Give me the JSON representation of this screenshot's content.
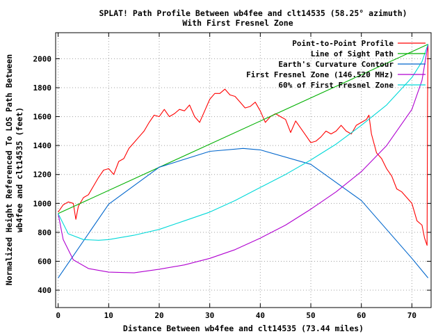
{
  "chart_data": {
    "type": "line",
    "title": "SPLAT! Path Profile Between wb4fee and clt14535 (58.25° azimuth)",
    "subtitle": "With First Fresnel Zone",
    "xlabel": "Distance Between wb4fee and clt14535 (73.44 miles)",
    "ylabel_lines": [
      "Normalized Height Referenced To LOS Path Between",
      "wb4fee and clt14535 (feet)"
    ],
    "xlim": [
      -0.5,
      73.8
    ],
    "ylim": [
      280,
      2180
    ],
    "x_ticks": [
      0,
      10,
      20,
      30,
      40,
      50,
      60,
      70
    ],
    "y_ticks": [
      400,
      600,
      800,
      1000,
      1200,
      1400,
      1600,
      1800,
      2000
    ],
    "grid": true,
    "legend_position": "top-right",
    "series": [
      {
        "name": "Point-to-Point Profile",
        "color": "#ff0000",
        "x": [
          0,
          1,
          2,
          3,
          3.5,
          4,
          5,
          6,
          7,
          8,
          9,
          10,
          11,
          12,
          13,
          14,
          15,
          16,
          17,
          18,
          19,
          20,
          21,
          22,
          23,
          24,
          25,
          26,
          27,
          28,
          29,
          30,
          31,
          32,
          33,
          34,
          35,
          36,
          37,
          38,
          39,
          40,
          41,
          42,
          43,
          44,
          45,
          46,
          47,
          48,
          49,
          50,
          51,
          52,
          53,
          54,
          55,
          56,
          57,
          58,
          59,
          60,
          61,
          61.5,
          62,
          63,
          64,
          65,
          66,
          67,
          68,
          69,
          70,
          71,
          72,
          72.5,
          73,
          73.1,
          73.2
        ],
        "y": [
          940,
          990,
          1010,
          1000,
          890,
          980,
          1040,
          1060,
          1120,
          1180,
          1230,
          1240,
          1200,
          1290,
          1310,
          1380,
          1420,
          1460,
          1500,
          1560,
          1610,
          1600,
          1650,
          1600,
          1620,
          1650,
          1640,
          1680,
          1600,
          1560,
          1640,
          1720,
          1760,
          1760,
          1790,
          1750,
          1740,
          1700,
          1660,
          1670,
          1700,
          1640,
          1560,
          1600,
          1620,
          1600,
          1580,
          1490,
          1570,
          1520,
          1470,
          1420,
          1430,
          1460,
          1500,
          1480,
          1500,
          1540,
          1500,
          1480,
          1540,
          1560,
          1580,
          1610,
          1480,
          1350,
          1310,
          1240,
          1190,
          1100,
          1080,
          1040,
          1000,
          880,
          850,
          760,
          710,
          1700,
          2100
        ]
      },
      {
        "name": "Line of Sight Path",
        "color": "#00b000",
        "x": [
          0,
          73.2
        ],
        "y": [
          930,
          2100
        ]
      },
      {
        "name": "Earth's Curvature Contour",
        "color": "#0066cc",
        "x": [
          0,
          10,
          20,
          30,
          36.6,
          40,
          50,
          60,
          70,
          73.2
        ],
        "y": [
          485,
          995,
          1250,
          1360,
          1380,
          1370,
          1270,
          1020,
          620,
          485
        ]
      },
      {
        "name": "First Fresnel Zone (146.520 MHz)",
        "color": "#b000d0",
        "x": [
          0,
          1,
          3,
          6,
          10,
          15,
          20,
          25,
          30,
          35,
          40,
          45,
          50,
          55,
          60,
          65,
          70,
          72,
          73.2
        ],
        "y": [
          930,
          750,
          610,
          550,
          525,
          520,
          545,
          575,
          620,
          680,
          760,
          850,
          960,
          1080,
          1220,
          1400,
          1650,
          1850,
          2100
        ]
      },
      {
        "name": "60% of First Fresnel Zone",
        "color": "#00d8d8",
        "x": [
          0,
          2,
          5,
          8,
          10,
          15,
          20,
          25,
          30,
          35,
          40,
          45,
          50,
          55,
          60,
          65,
          70,
          72,
          73.2
        ],
        "y": [
          930,
          790,
          750,
          745,
          750,
          780,
          820,
          880,
          940,
          1020,
          1110,
          1200,
          1300,
          1410,
          1540,
          1680,
          1870,
          1980,
          2100
        ]
      }
    ]
  }
}
